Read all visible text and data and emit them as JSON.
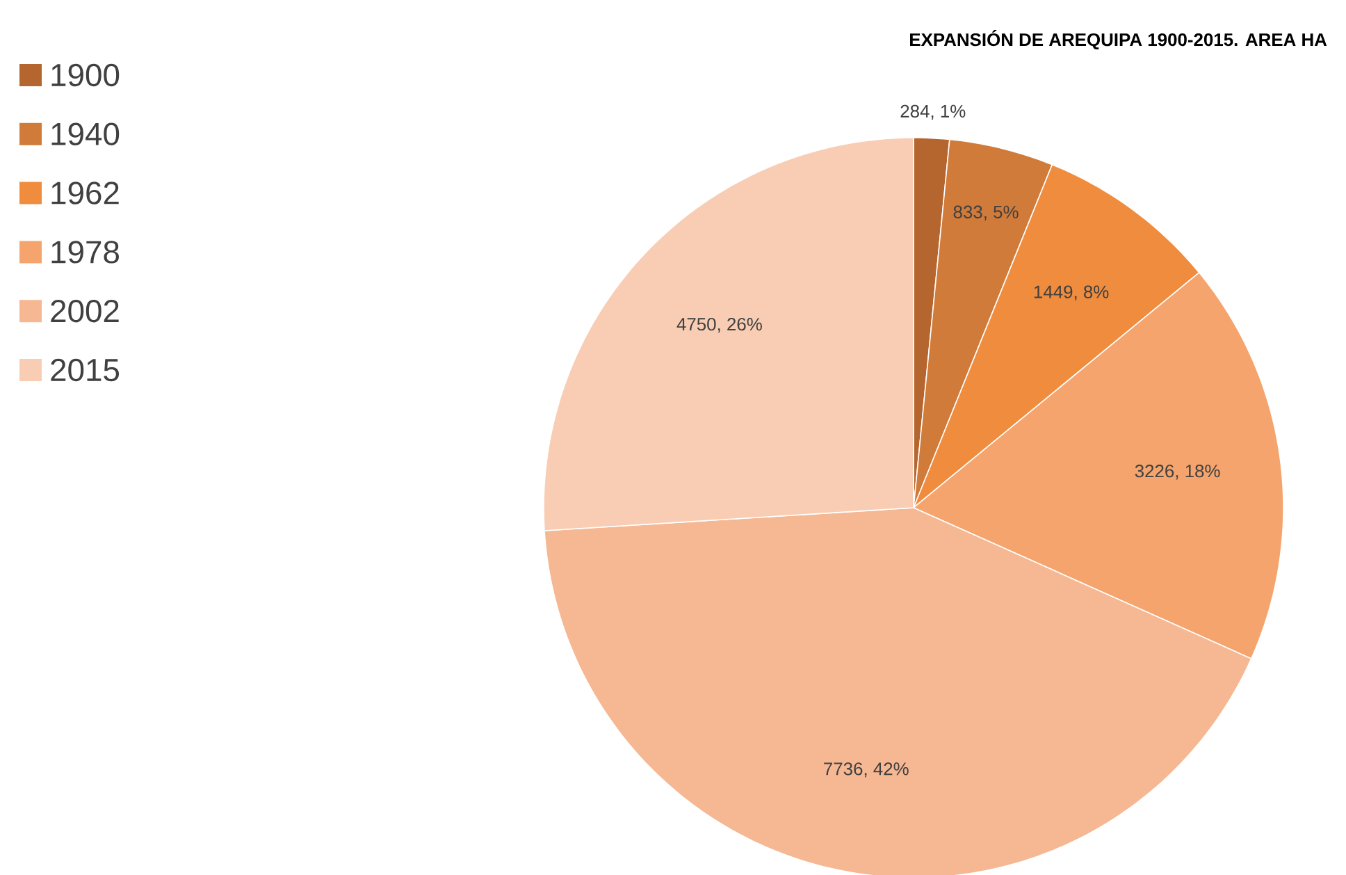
{
  "chart_data": {
    "type": "pie",
    "title": "EXPANSIÓN DE AREQUIPA 1900-2015. AREA HA",
    "categories": [
      "1900",
      "1940",
      "1962",
      "1978",
      "2002",
      "2015"
    ],
    "values": [
      284,
      833,
      1449,
      3226,
      7736,
      4750
    ],
    "value_labels": [
      "284, 1%",
      "833, 5%",
      "1449, 8%",
      "3226, 18%",
      "7736, 42%",
      "4750, 26%"
    ],
    "colors": [
      "#b5652e",
      "#d07b3a",
      "#ef8c3e",
      "#f4a46c",
      "#f6b793",
      "#f8cdb4"
    ],
    "legend": "left"
  }
}
